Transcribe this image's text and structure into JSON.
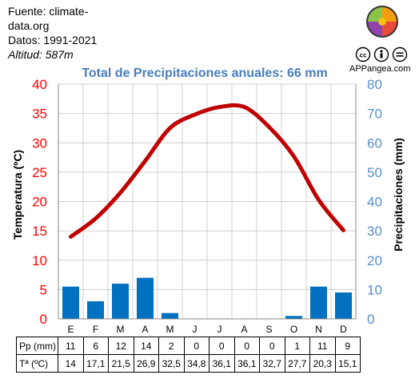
{
  "source_label": "Fuente: climate-data.org",
  "period": "Datos: 1991-2021",
  "altitude": "Altitud: 587m",
  "brand": "APPangea.com",
  "license_icons": [
    "cc-icon",
    "by-icon",
    "nd-icon"
  ],
  "chart_data": {
    "type": "bar+line",
    "title": "Total de Precipitaciones anuales: 66 mm",
    "categories": [
      "E",
      "F",
      "M",
      "A",
      "M",
      "J",
      "J",
      "A",
      "S",
      "O",
      "N",
      "D"
    ],
    "series": [
      {
        "name": "Pp (mm)",
        "type": "bar",
        "axis": "right",
        "values": [
          11,
          6,
          12,
          14,
          2,
          0,
          0,
          0,
          0,
          1,
          11,
          9
        ],
        "color": "#0070c0"
      },
      {
        "name": "Tª (ºC)",
        "type": "line",
        "axis": "left",
        "values": [
          14,
          17.1,
          21.5,
          26.9,
          32.5,
          34.8,
          36.1,
          36.1,
          32.7,
          27.7,
          20.3,
          15.1
        ],
        "color": "#c00000"
      }
    ],
    "y_left": {
      "label": "Temperatura (ºC)",
      "min": 0,
      "max": 40,
      "ticks": [
        0,
        5,
        10,
        15,
        20,
        25,
        30,
        35,
        40
      ],
      "color": "#ff0000"
    },
    "y_right": {
      "label": "Precipitaciones (mm)",
      "min": 0,
      "max": 80,
      "ticks": [
        0,
        10,
        20,
        30,
        40,
        50,
        60,
        70,
        80
      ],
      "color": "#5b8dc8"
    },
    "grid": true,
    "table": {
      "rows": [
        {
          "label": "Pp (mm)",
          "cells": [
            "11",
            "6",
            "12",
            "14",
            "2",
            "0",
            "0",
            "0",
            "0",
            "1",
            "11",
            "9"
          ]
        },
        {
          "label": "Tª (ºC)",
          "cells": [
            "14",
            "17,1",
            "21,5",
            "26,9",
            "32,5",
            "34,8",
            "36,1",
            "36,1",
            "32,7",
            "27,7",
            "20,3",
            "15,1"
          ]
        }
      ]
    }
  }
}
